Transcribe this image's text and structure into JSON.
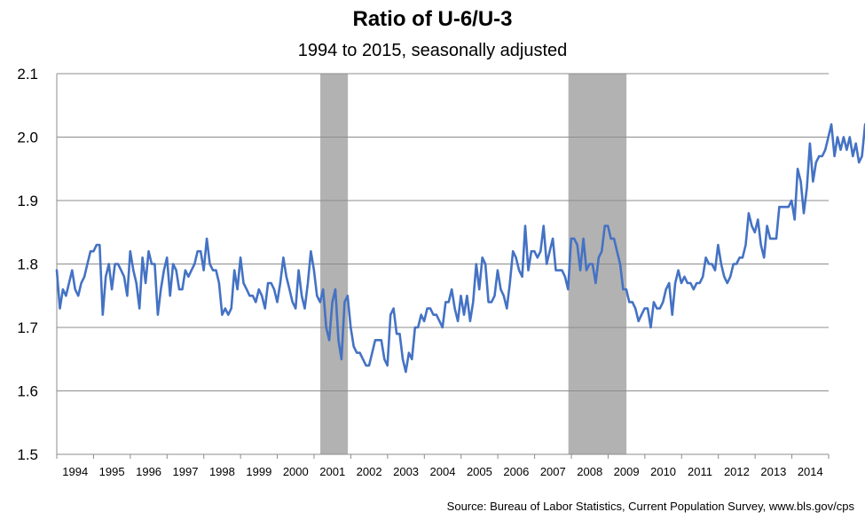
{
  "chart_data": {
    "type": "line",
    "title": "Ratio of U-6/U-3",
    "subtitle": "1994 to 2015, seasonally adjusted",
    "xlabel": "",
    "ylabel": "",
    "ylim": [
      1.5,
      2.1
    ],
    "xlim": [
      1994.0,
      2015.0
    ],
    "yticks": [
      "1.5",
      "1.6",
      "1.7",
      "1.8",
      "1.9",
      "2.0",
      "2.1"
    ],
    "xticks": [
      "1994",
      "1995",
      "1996",
      "1997",
      "1998",
      "1999",
      "2000",
      "2001",
      "2002",
      "2003",
      "2004",
      "2005",
      "2006",
      "2007",
      "2008",
      "2009",
      "2010",
      "2011",
      "2012",
      "2013",
      "2014"
    ],
    "grid": "horizontal",
    "recessions": [
      {
        "start": 2001.17,
        "end": 2001.92
      },
      {
        "start": 2007.92,
        "end": 2009.5
      }
    ],
    "series": [
      {
        "name": "U-6/U-3",
        "color": "#4472C4",
        "x_start": 1994.0,
        "x_step": 0.0833,
        "values": [
          1.79,
          1.73,
          1.76,
          1.75,
          1.77,
          1.79,
          1.76,
          1.75,
          1.77,
          1.78,
          1.8,
          1.82,
          1.82,
          1.83,
          1.83,
          1.72,
          1.78,
          1.8,
          1.76,
          1.8,
          1.8,
          1.79,
          1.78,
          1.75,
          1.82,
          1.79,
          1.77,
          1.73,
          1.81,
          1.77,
          1.82,
          1.8,
          1.8,
          1.72,
          1.76,
          1.79,
          1.81,
          1.75,
          1.8,
          1.79,
          1.76,
          1.76,
          1.79,
          1.78,
          1.79,
          1.8,
          1.82,
          1.82,
          1.79,
          1.84,
          1.8,
          1.79,
          1.79,
          1.77,
          1.72,
          1.73,
          1.72,
          1.73,
          1.79,
          1.76,
          1.81,
          1.77,
          1.76,
          1.75,
          1.75,
          1.74,
          1.76,
          1.75,
          1.73,
          1.77,
          1.77,
          1.76,
          1.74,
          1.77,
          1.81,
          1.78,
          1.76,
          1.74,
          1.73,
          1.79,
          1.75,
          1.73,
          1.77,
          1.82,
          1.79,
          1.75,
          1.74,
          1.76,
          1.7,
          1.68,
          1.74,
          1.76,
          1.68,
          1.65,
          1.74,
          1.75,
          1.7,
          1.67,
          1.66,
          1.66,
          1.65,
          1.64,
          1.64,
          1.66,
          1.68,
          1.68,
          1.68,
          1.65,
          1.64,
          1.72,
          1.73,
          1.69,
          1.69,
          1.65,
          1.63,
          1.66,
          1.65,
          1.7,
          1.7,
          1.72,
          1.71,
          1.73,
          1.73,
          1.72,
          1.72,
          1.71,
          1.7,
          1.74,
          1.74,
          1.76,
          1.73,
          1.71,
          1.75,
          1.72,
          1.75,
          1.71,
          1.74,
          1.8,
          1.76,
          1.81,
          1.8,
          1.74,
          1.74,
          1.75,
          1.79,
          1.76,
          1.75,
          1.73,
          1.77,
          1.82,
          1.81,
          1.79,
          1.78,
          1.86,
          1.79,
          1.82,
          1.82,
          1.81,
          1.82,
          1.86,
          1.8,
          1.82,
          1.84,
          1.79,
          1.79,
          1.79,
          1.78,
          1.76,
          1.84,
          1.84,
          1.83,
          1.79,
          1.84,
          1.79,
          1.8,
          1.8,
          1.77,
          1.81,
          1.82,
          1.86,
          1.86,
          1.84,
          1.84,
          1.82,
          1.8,
          1.76,
          1.76,
          1.74,
          1.74,
          1.73,
          1.71,
          1.72,
          1.73,
          1.73,
          1.7,
          1.74,
          1.73,
          1.73,
          1.74,
          1.76,
          1.77,
          1.72,
          1.77,
          1.79,
          1.77,
          1.78,
          1.77,
          1.77,
          1.76,
          1.77,
          1.77,
          1.78,
          1.81,
          1.8,
          1.8,
          1.79,
          1.83,
          1.8,
          1.78,
          1.77,
          1.78,
          1.8,
          1.8,
          1.81,
          1.81,
          1.83,
          1.88,
          1.86,
          1.85,
          1.87,
          1.83,
          1.81,
          1.86,
          1.84,
          1.84,
          1.84,
          1.89,
          1.89,
          1.89,
          1.89,
          1.9,
          1.87,
          1.95,
          1.93,
          1.88,
          1.92,
          1.99,
          1.93,
          1.96,
          1.97,
          1.97,
          1.98,
          2.0,
          2.02,
          1.97,
          2.0,
          1.98,
          2.0,
          1.98,
          2.0,
          1.97,
          1.99,
          1.96,
          1.97,
          2.02,
          1.96,
          1.96
        ]
      }
    ]
  },
  "footer": {
    "source": "Source: Bureau of Labor Statistics, Current Population Survey, www.bls.gov/cps"
  }
}
